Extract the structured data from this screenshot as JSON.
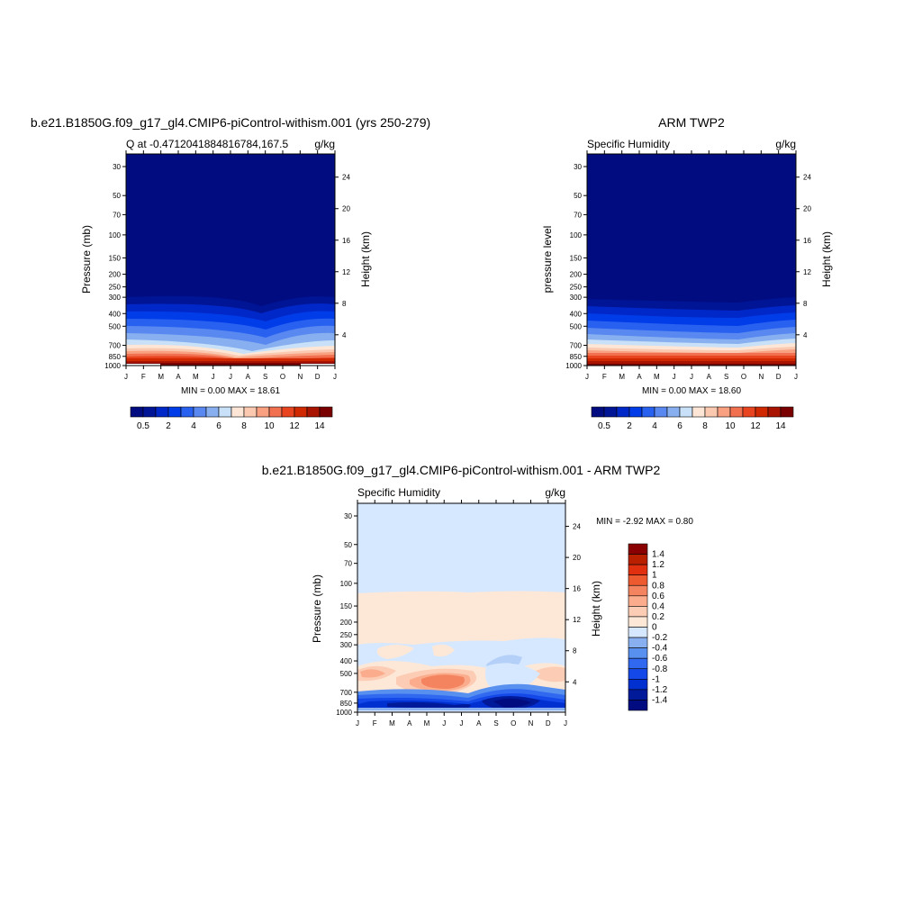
{
  "months": [
    "J",
    "F",
    "M",
    "A",
    "M",
    "J",
    "J",
    "A",
    "S",
    "O",
    "N",
    "D",
    "J"
  ],
  "pressure_ticks": [
    30,
    50,
    70,
    100,
    150,
    200,
    250,
    300,
    400,
    500,
    700,
    850,
    1000
  ],
  "height_ticks": [
    4,
    8,
    12,
    16,
    20,
    24
  ],
  "colors": {
    "q_levels": [
      "#000c80",
      "#001496",
      "#0028c8",
      "#003ce8",
      "#2860f0",
      "#5888f0",
      "#88b0f0",
      "#c8e0f8",
      "#fde6d6",
      "#fbc8b0",
      "#f8a080",
      "#f07050",
      "#e84420",
      "#d02800",
      "#a81400",
      "#7a0000"
    ],
    "d_levels": [
      "#000c80",
      "#001a9a",
      "#0030d0",
      "#1448e8",
      "#3068f0",
      "#5890f0",
      "#88b0f0",
      "#d6e8ff",
      "#fde8d8",
      "#fcccb4",
      "#faac8c",
      "#f48460",
      "#ee5a30",
      "#e03010",
      "#b82000",
      "#8a0000"
    ]
  },
  "panel1": {
    "title": "b.e21.B1850G.f09_g17_gl4.CMIP6-piControl-withism.001 (yrs 250-279)",
    "left_label": "Q at -0.4712041884816784,167.5",
    "right_label": "g/kg",
    "ylabel": "Pressure (mb)",
    "y2label": "Height (km)",
    "stats": "MIN =   0.00 MAX =  18.61"
  },
  "panel2": {
    "title": "ARM TWP2",
    "left_label": "Specific Humidity",
    "right_label": "g/kg",
    "ylabel": "pressure level",
    "y2label": "Height (km)",
    "stats": "MIN =   0.00 MAX =  18.60"
  },
  "panel3": {
    "title": "b.e21.B1850G.f09_g17_gl4.CMIP6-piControl-withism.001 - ARM TWP2",
    "left_label": "Specific Humidity",
    "right_label": "g/kg",
    "ylabel": "Pressure (mb)",
    "y2label": "Height (km)",
    "stats": "MIN =  -2.92 MAX =   0.80"
  },
  "colorbar_q": {
    "labels": [
      "0.5",
      "2",
      "4",
      "6",
      "8",
      "10",
      "12",
      "14"
    ]
  },
  "colorbar_diff": {
    "labels": [
      "1.4",
      "1.2",
      "1",
      "0.8",
      "0.6",
      "0.4",
      "0.2",
      "0",
      "-0.2",
      "-0.4",
      "-0.6",
      "-0.8",
      "-1",
      "-1.2",
      "-1.4"
    ]
  },
  "chart_data": [
    {
      "type": "heatmap",
      "title": "b.e21.B1850G.f09_g17_gl4.CMIP6-piControl-withism.001 (yrs 250-279)",
      "subtitle": "Q at -0.4712041884816784,167.5",
      "units": "g/kg",
      "x": [
        "J",
        "F",
        "M",
        "A",
        "M",
        "J",
        "J",
        "A",
        "S",
        "O",
        "N",
        "D",
        "J"
      ],
      "ylabel": "Pressure (mb)",
      "y2label": "Height (km)",
      "ylim": [
        1000,
        30
      ],
      "min": 0.0,
      "max": 18.61,
      "profile_levels": [
        1000,
        850,
        700,
        500,
        400,
        300
      ],
      "profile_values": [
        17,
        12,
        7,
        2.5,
        1.2,
        0.5
      ]
    },
    {
      "type": "heatmap",
      "title": "ARM TWP2",
      "subtitle": "Specific Humidity",
      "units": "g/kg",
      "x": [
        "J",
        "F",
        "M",
        "A",
        "M",
        "J",
        "J",
        "A",
        "S",
        "O",
        "N",
        "D",
        "J"
      ],
      "ylabel": "pressure level",
      "y2label": "Height (km)",
      "ylim": [
        1000,
        30
      ],
      "min": 0.0,
      "max": 18.6
    },
    {
      "type": "heatmap",
      "title": "b.e21.B1850G.f09_g17_gl4.CMIP6-piControl-withism.001 - ARM TWP2",
      "subtitle": "Specific Humidity",
      "units": "g/kg",
      "x": [
        "J",
        "F",
        "M",
        "A",
        "M",
        "J",
        "J",
        "A",
        "S",
        "O",
        "N",
        "D",
        "J"
      ],
      "ylabel": "Pressure (mb)",
      "y2label": "Height (km)",
      "ylim": [
        1000,
        30
      ],
      "min": -2.92,
      "max": 0.8
    }
  ]
}
